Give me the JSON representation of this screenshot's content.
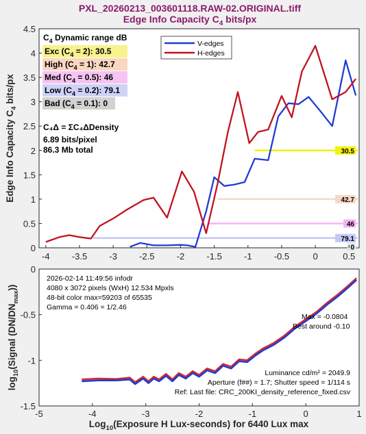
{
  "title_line1": "PXL_20260213_003601118.RAW-02.ORIGINAL.tiff",
  "title_line2_main": "Edge Info Capacity C",
  "title_line2_sub": "4",
  "title_line2_tail": " bits/px",
  "colors": {
    "v_edges": "#1f3bd6",
    "h_edges": "#c1121f",
    "red_curve": "#d62a2a",
    "blue_curve": "#1f3bd6",
    "exc": "#f7f28c",
    "high": "#f9d7c0",
    "med": "#f6c4f2",
    "low": "#cfd2f7",
    "bad": "#d2d2d2",
    "level_exc": "#f2f20a",
    "level_high": "#f7d8c4",
    "level_med": "#f5b4f3",
    "level_low": "#c3c8f5",
    "level_bad": "#e4e4e4"
  },
  "panel": {
    "header_main": "C",
    "header_sub": "4",
    "header_tail": " Dynamic range dB",
    "rows": [
      {
        "key": "exc",
        "label": "Exc",
        "cond": "2",
        "value": "30.5"
      },
      {
        "key": "high",
        "label": "High",
        "cond": "1",
        "value": "42.7"
      },
      {
        "key": "med",
        "label": "Med",
        "cond": "0.5",
        "value": "46"
      },
      {
        "key": "low",
        "label": "Low",
        "cond": "0.2",
        "value": "79.1"
      },
      {
        "key": "bad",
        "label": "Bad",
        "cond": "0.1",
        "value": "0"
      }
    ],
    "formula": "C₄Δ = ΣC₄ΔDensity",
    "bits_pixel": "6.89 bits/pixel",
    "total": "86.3 Mb total"
  },
  "legend": {
    "v": "V-edges",
    "h": "H-edges"
  },
  "info": {
    "timestamp": "2026-02-14 11:49:56   infodr",
    "pixels": "4080 x 3072 pixels (WxH)   12.534  Mpxls",
    "color": "48-bit color  max=59203 of 65535",
    "gamma": "Gamma = 0.406 = 1/2.46",
    "max": "Max = -0.0804",
    "best": "Best around -0.10",
    "luminance": "Luminance cd/m² = 2049.9",
    "aperture": "Aperture (f##) = 1.7;  Shutter speed = 1/114  s",
    "ref": "Ref: Last file: CRC_200KI_density_reference_fixed.csv"
  },
  "chart_data": [
    {
      "type": "line",
      "title": "Edge Info Capacity C4 bits/px",
      "ylabel": "Edge Info Capacity C4 bits/px",
      "xlim": [
        -4.1,
        0.65
      ],
      "ylim": [
        0,
        4.5
      ],
      "xticks": [
        -4,
        -3.5,
        -3,
        -2.5,
        -2,
        -1.5,
        -1,
        -0.5,
        0,
        0.5
      ],
      "yticks": [
        0,
        0.5,
        1,
        1.5,
        2,
        2.5,
        3,
        3.5,
        4,
        4.5
      ],
      "xtick_labels": [
        "-4",
        "-3.5",
        "-3",
        "-2.5",
        "-2",
        "-1.5",
        "-1",
        "-0.5",
        "0",
        "0.5"
      ],
      "ytick_labels": [
        "0",
        "0.5",
        "1",
        "1.5",
        "2",
        "2.5",
        "3",
        "3.5",
        "4",
        "4.5"
      ],
      "legend": "top-center",
      "series": [
        {
          "name": "V-edges",
          "x": [
            -2.75,
            -2.6,
            -2.4,
            -2.2,
            -2.0,
            -1.9,
            -1.78,
            -1.62,
            -1.5,
            -1.35,
            -1.2,
            -1.05,
            -0.9,
            -0.7,
            -0.55,
            -0.4,
            -0.25,
            -0.1,
            0.05,
            0.25,
            0.45,
            0.6
          ],
          "y": [
            0.02,
            0.1,
            0.05,
            0.05,
            0.06,
            0.05,
            0.02,
            0.75,
            1.45,
            1.27,
            1.3,
            1.35,
            1.83,
            1.8,
            2.7,
            2.97,
            2.95,
            3.1,
            2.85,
            2.5,
            3.85,
            3.13
          ]
        },
        {
          "name": "H-edges",
          "x": [
            -4.0,
            -3.8,
            -3.65,
            -3.5,
            -3.33,
            -3.2,
            -3.0,
            -2.8,
            -2.55,
            -2.4,
            -2.2,
            -1.98,
            -1.8,
            -1.62,
            -1.45,
            -1.3,
            -1.15,
            -0.98,
            -0.85,
            -0.7,
            -0.5,
            -0.35,
            -0.2,
            0.0,
            0.25,
            0.45,
            0.6
          ],
          "y": [
            0.12,
            0.22,
            0.26,
            0.22,
            0.19,
            0.45,
            0.6,
            0.78,
            0.98,
            1.03,
            0.62,
            1.57,
            1.15,
            0.3,
            1.32,
            2.37,
            3.2,
            2.15,
            2.38,
            2.43,
            3.12,
            2.68,
            3.62,
            4.15,
            3.05,
            3.2,
            3.47
          ]
        }
      ],
      "levels": [
        {
          "key": "exc",
          "label": "30.5",
          "y": 2,
          "x0": -0.9
        },
        {
          "key": "high",
          "label": "42.7",
          "y": 1,
          "x0": -1.45
        },
        {
          "key": "med",
          "label": "46",
          "y": 0.5,
          "x0": -1.6
        },
        {
          "key": "low",
          "label": "79.1",
          "y": 0.2,
          "x0": -3.3
        },
        {
          "key": "bad",
          "label": "0",
          "y": 0.02,
          "x0": 0.55
        }
      ]
    },
    {
      "type": "line",
      "xlabel": "Log10(Exposure H Lux-seconds)  for 6440 Lux max",
      "ylabel": "log10(Signal (DN/DNmax))",
      "xlim": [
        -5,
        1
      ],
      "ylim": [
        -1.5,
        0
      ],
      "xticks": [
        -5,
        -4,
        -3,
        -2,
        -1,
        0,
        1
      ],
      "yticks": [
        -1.5,
        -1,
        -0.5,
        0
      ],
      "xtick_labels": [
        "-5",
        "-4",
        "-3",
        "-2",
        "-1",
        "0",
        "1"
      ],
      "ytick_labels": [
        "-1.5",
        "-1",
        "-0.5",
        "0"
      ],
      "series": [
        {
          "x": [
            -4.2,
            -3.9,
            -3.55,
            -3.3,
            -3.2,
            -3.05,
            -2.95,
            -2.85,
            -2.75,
            -2.62,
            -2.5,
            -2.38,
            -2.25,
            -2.12,
            -2.0,
            -1.85,
            -1.7,
            -1.55,
            -1.4,
            -1.25,
            -1.1,
            -0.95,
            -0.8,
            -0.6,
            -0.4,
            -0.2,
            0.0,
            0.2,
            0.4,
            0.6,
            0.8,
            0.95
          ],
          "y": [
            -1.21,
            -1.2,
            -1.205,
            -1.19,
            -1.24,
            -1.18,
            -1.23,
            -1.18,
            -1.21,
            -1.15,
            -1.21,
            -1.14,
            -1.18,
            -1.12,
            -1.16,
            -1.09,
            -1.12,
            -1.04,
            -1.07,
            -0.99,
            -1.0,
            -0.93,
            -0.87,
            -0.81,
            -0.73,
            -0.63,
            -0.55,
            -0.47,
            -0.37,
            -0.28,
            -0.18,
            -0.1
          ]
        },
        {
          "x": [
            -4.2,
            -3.9,
            -3.55,
            -3.3,
            -3.2,
            -3.05,
            -2.95,
            -2.85,
            -2.75,
            -2.62,
            -2.5,
            -2.38,
            -2.25,
            -2.12,
            -2.0,
            -1.85,
            -1.7,
            -1.55,
            -1.4,
            -1.25,
            -1.1,
            -0.95,
            -0.8,
            -0.6,
            -0.4,
            -0.2,
            0.0,
            0.2,
            0.4,
            0.6,
            0.8,
            0.95
          ],
          "y": [
            -1.23,
            -1.22,
            -1.22,
            -1.21,
            -1.26,
            -1.2,
            -1.25,
            -1.2,
            -1.23,
            -1.17,
            -1.23,
            -1.16,
            -1.2,
            -1.14,
            -1.18,
            -1.11,
            -1.14,
            -1.06,
            -1.09,
            -1.01,
            -1.02,
            -0.95,
            -0.89,
            -0.83,
            -0.75,
            -0.65,
            -0.57,
            -0.49,
            -0.39,
            -0.3,
            -0.2,
            -0.12
          ]
        }
      ]
    }
  ]
}
